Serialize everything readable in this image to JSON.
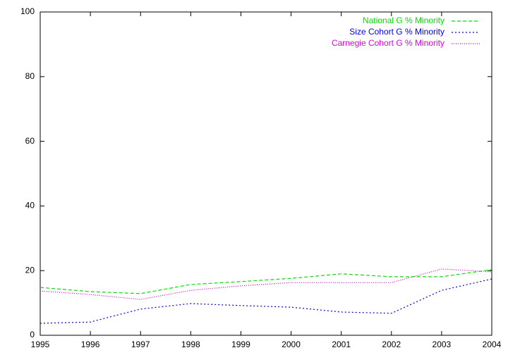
{
  "chart_data": {
    "type": "line",
    "x": [
      1995,
      1996,
      1997,
      1998,
      1999,
      2000,
      2001,
      2002,
      2003,
      2004
    ],
    "series": [
      {
        "name": "National G % Minority",
        "color": "#00e000",
        "values": [
          14.8,
          13.5,
          12.9,
          15.7,
          16.6,
          17.6,
          19.0,
          18.1,
          18.1,
          20.3
        ]
      },
      {
        "name": "Size Cohort G % Minority",
        "color": "#0000e0",
        "values": [
          3.7,
          4.1,
          8.1,
          9.8,
          9.2,
          8.7,
          7.2,
          6.8,
          13.9,
          17.4
        ]
      },
      {
        "name": "Carnegie Cohort G % Minority",
        "color": "#e000e0",
        "values": [
          13.7,
          12.6,
          11.1,
          13.9,
          15.3,
          16.3,
          16.3,
          16.3,
          20.5,
          19.6
        ]
      }
    ],
    "xlim": [
      1995,
      2004
    ],
    "xticks": [
      1995,
      1996,
      1997,
      1998,
      1999,
      2000,
      2001,
      2002,
      2003,
      2004
    ],
    "ylim": [
      0,
      100
    ],
    "yticks": [
      0,
      20,
      40,
      60,
      80,
      100
    ],
    "legend": "top-right"
  }
}
